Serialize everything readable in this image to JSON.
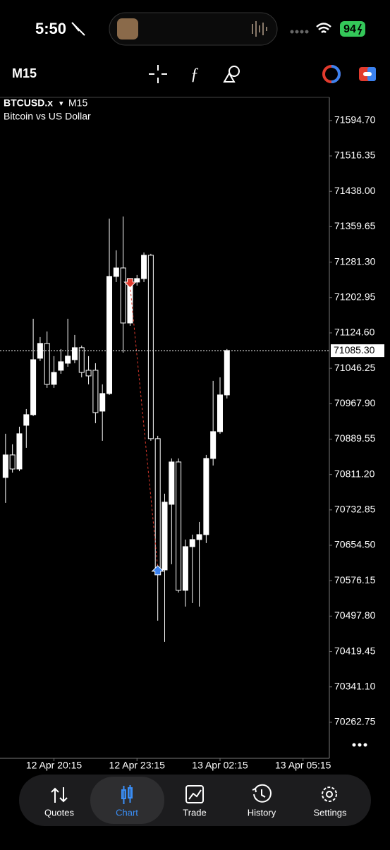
{
  "status_bar": {
    "time": "5:50",
    "battery": "94"
  },
  "toolbar": {
    "timeframe": "M15"
  },
  "chart_data": {
    "type": "candlestick",
    "symbol": "BTCUSD.x",
    "dropdown": "▾",
    "timeframe": "M15",
    "description": "Bitcoin vs US Dollar",
    "x": [
      0,
      1,
      2,
      3,
      4,
      5,
      6,
      7,
      8,
      9,
      10,
      11,
      12,
      13,
      14,
      15,
      16,
      17,
      18,
      19,
      20,
      21,
      22,
      23,
      24,
      25,
      26,
      27,
      28,
      29,
      30,
      31,
      32
    ],
    "open": [
      70804.6,
      70854.5,
      70823.3,
      70920.1,
      70943.6,
      71068.5,
      71101.3,
      71010.7,
      71041.9,
      71057.5,
      71065.3,
      71091.9,
      71041.9,
      71041.9,
      70951.4,
      70990.4,
      71249.6,
      71268.3,
      71146.5,
      71237.1,
      71244.9,
      71296.5,
      70890.5,
      70600.0,
      70745.2,
      70838.9,
      70554.8,
      70651.5,
      70667.2,
      70678.1,
      70846.7,
      70906.1,
      70987.3
    ],
    "high": [
      70901.4,
      70878.0,
      70917.0,
      70956.0,
      71155.9,
      71115.3,
      71127.8,
      71073.2,
      71088.8,
      71155.9,
      71120.0,
      71096.6,
      71073.2,
      71057.5,
      71010.7,
      71377.7,
      71307.4,
      71382.3,
      71244.9,
      71252.7,
      71302.7,
      71299.6,
      70896.7,
      70768.7,
      70846.7,
      70846.7,
      70667.2,
      70678.1,
      70706.2,
      70854.5,
      71018.5,
      71026.3,
      71088.8
    ],
    "low": [
      70748.4,
      70815.5,
      70818.6,
      70870.2,
      70940.4,
      71062.2,
      71002.9,
      71002.9,
      71034.1,
      71049.7,
      71057.5,
      71026.3,
      71010.7,
      70924.8,
      70885.8,
      70987.3,
      71237.1,
      71081.0,
      71140.3,
      71229.3,
      71237.1,
      70885.8,
      70487.6,
      70440.8,
      70612.5,
      70550.0,
      70518.8,
      70526.6,
      70518.8,
      70659.4,
      70831.1,
      70901.4,
      70979.5
    ],
    "close": [
      70854.5,
      70823.3,
      70901.4,
      70943.6,
      71065.3,
      71101.3,
      71010.7,
      71037.2,
      71060.7,
      71073.2,
      71091.9,
      71037.2,
      71029.4,
      70948.2,
      70990.4,
      71249.6,
      71268.3,
      71146.5,
      71237.1,
      71244.9,
      71296.5,
      70890.5,
      70600.0,
      70749.9,
      70838.9,
      70554.8,
      70651.5,
      70667.2,
      70678.1,
      70846.7,
      70906.1,
      70987.3,
      71085.6
    ],
    "up_color": "#ffffff",
    "down_color": "#000000",
    "wick_color": "#ffffff",
    "markers": [
      {
        "x": 18,
        "value": 71229.3,
        "color": "#e23b2e"
      },
      {
        "x": 22,
        "value": 70604.7,
        "color": "#3b82f0"
      }
    ],
    "current_price": {
      "value": 71085.3,
      "label": "71085.30"
    },
    "xlim": [
      -0.8,
      46.8
    ],
    "xticks": [
      {
        "value": 7,
        "label": "12 Apr 20:15"
      },
      {
        "value": 19,
        "label": "12 Apr 23:15"
      },
      {
        "value": 31,
        "label": "13 Apr 02:15"
      },
      {
        "value": 43,
        "label": "13 Apr 05:15"
      }
    ],
    "ylim": [
      70183,
      71646
    ],
    "yticks": [
      {
        "value": 71594.7,
        "label": "71594.70"
      },
      71516.35,
      {
        "value": 71438,
        "label": "71438.00"
      },
      71359.65,
      {
        "value": 71281.3,
        "label": "71281.30"
      },
      71202.95,
      {
        "value": 71124.6,
        "label": "71124.60"
      },
      71046.25,
      {
        "value": 70967.9,
        "label": "70967.90"
      },
      70889.55,
      {
        "value": 70811.2,
        "label": "70811.20"
      },
      70732.85,
      {
        "value": 70654.5,
        "label": "70654.50"
      },
      70576.15,
      {
        "value": 70497.8,
        "label": "70497.80"
      },
      70419.45,
      {
        "value": 70341.1,
        "label": "70341.10"
      },
      70262.75
    ]
  },
  "tab_bar": {
    "tabs": [
      "Quotes",
      "Chart",
      "Trade",
      "History",
      "Settings"
    ]
  }
}
